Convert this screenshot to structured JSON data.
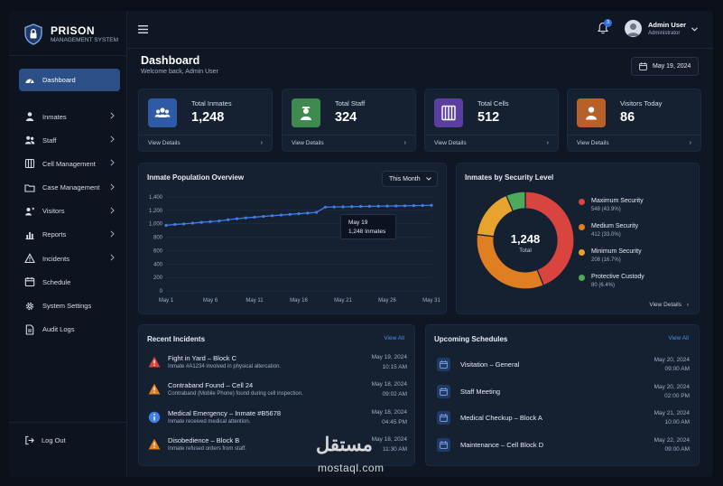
{
  "brand": {
    "title": "PRISON",
    "subtitle": "MANAGEMENT SYSTEM"
  },
  "sidebar": {
    "items": [
      {
        "label": "Dashboard",
        "icon": "dashboard-gauge-icon",
        "active": true,
        "chevron": false
      },
      {
        "label": "Inmates",
        "icon": "person-icon",
        "chevron": true
      },
      {
        "label": "Staff",
        "icon": "people-icon",
        "chevron": true
      },
      {
        "label": "Cell Management",
        "icon": "grid-cell-icon",
        "chevron": true
      },
      {
        "label": "Case Management",
        "icon": "folder-icon",
        "chevron": true
      },
      {
        "label": "Visitors",
        "icon": "visitors-icon",
        "chevron": true
      },
      {
        "label": "Reports",
        "icon": "bar-chart-icon",
        "chevron": true
      },
      {
        "label": "Incidents",
        "icon": "warning-icon",
        "chevron": true
      },
      {
        "label": "Schedule",
        "icon": "calendar-icon",
        "chevron": false
      },
      {
        "label": "System Settings",
        "icon": "gear-icon",
        "chevron": false
      },
      {
        "label": "Audit Logs",
        "icon": "document-icon",
        "chevron": false
      }
    ],
    "logout": "Log Out"
  },
  "topbar": {
    "notification_count": "3",
    "user_name": "Admin User",
    "user_role": "Administrator"
  },
  "header": {
    "title": "Dashboard",
    "subtitle": "Welcome back, Admin User",
    "date": "May 19, 2024"
  },
  "stats": [
    {
      "label": "Total Inmates",
      "value": "1,248",
      "link": "View Details",
      "color": "#2f5aa6",
      "icon": "inmates-group-icon"
    },
    {
      "label": "Total Staff",
      "value": "324",
      "link": "View Details",
      "color": "#3f8a4f",
      "icon": "staff-officer-icon"
    },
    {
      "label": "Total Cells",
      "value": "512",
      "link": "View Details",
      "color": "#5a3fa0",
      "icon": "cell-bars-icon"
    },
    {
      "label": "Visitors Today",
      "value": "86",
      "link": "View Details",
      "color": "#b8602a",
      "icon": "visitor-person-icon"
    }
  ],
  "population": {
    "title": "Inmate Population Overview",
    "filter": "This Month",
    "tooltip_date": "May 19",
    "tooltip_value": "1,248 Inmates"
  },
  "security": {
    "title": "Inmates by Security Level",
    "total": "1,248",
    "total_label": "Total",
    "link": "View Details",
    "legend": [
      {
        "label": "Maximum Security",
        "detail": "548 (43.9%)",
        "color": "#d9443f"
      },
      {
        "label": "Medium Security",
        "detail": "412 (33.0%)",
        "color": "#e07e22"
      },
      {
        "label": "Minimum Security",
        "detail": "208 (16.7%)",
        "color": "#e8a22e"
      },
      {
        "label": "Protective Custody",
        "detail": "80 (6.4%)",
        "color": "#4caa5a"
      }
    ]
  },
  "incidents": {
    "title": "Recent Incidents",
    "view_all": "View All",
    "rows": [
      {
        "title": "Fight in Yard – Block C",
        "desc": "Inmate #A1234 involved in physical altercation.",
        "date": "May 19, 2024",
        "time": "10:15 AM",
        "icon": "alert-red-icon"
      },
      {
        "title": "Contraband Found – Cell 24",
        "desc": "Contraband (Mobile Phone) found during cell inspection.",
        "date": "May 18, 2024",
        "time": "09:02 AM",
        "icon": "alert-orange-icon"
      },
      {
        "title": "Medical Emergency – Inmate #B5678",
        "desc": "Inmate received medical attention.",
        "date": "May 18, 2024",
        "time": "04:45 PM",
        "icon": "info-blue-icon"
      },
      {
        "title": "Disobedience – Block B",
        "desc": "Inmate refused orders from staff.",
        "date": "May 18, 2024",
        "time": "11:30 AM",
        "icon": "alert-orange-icon"
      }
    ]
  },
  "schedules": {
    "title": "Upcoming Schedules",
    "view_all": "View All",
    "rows": [
      {
        "title": "Visitation – General",
        "date": "May 20, 2024",
        "time": "09:00 AM"
      },
      {
        "title": "Staff Meeting",
        "date": "May 20, 2024",
        "time": "02:00 PM"
      },
      {
        "title": "Medical Checkup – Block A",
        "date": "May 21, 2024",
        "time": "10:00 AM"
      },
      {
        "title": "Maintenance – Cell Block D",
        "date": "May 22, 2024",
        "time": "09:00 AM"
      }
    ]
  },
  "watermark": {
    "text": "مستقل",
    "url": "mostaql.com"
  },
  "chart_data": [
    {
      "type": "line",
      "title": "Inmate Population Overview",
      "x": [
        "May 1",
        "May 2",
        "May 3",
        "May 4",
        "May 5",
        "May 6",
        "May 7",
        "May 8",
        "May 9",
        "May 10",
        "May 11",
        "May 12",
        "May 13",
        "May 14",
        "May 15",
        "May 16",
        "May 17",
        "May 18",
        "May 19",
        "May 20",
        "May 21",
        "May 22",
        "May 23",
        "May 24",
        "May 25",
        "May 26",
        "May 27",
        "May 28",
        "May 29",
        "May 30",
        "May 31"
      ],
      "x_ticks": [
        "May 1",
        "May 6",
        "May 11",
        "May 16",
        "May 21",
        "May 26",
        "May 31"
      ],
      "y_ticks": [
        "0",
        "200",
        "400",
        "600",
        "800",
        "1,000",
        "1,200",
        "1,400"
      ],
      "series": [
        {
          "values": [
            976,
            990,
            998,
            1010,
            1022,
            1032,
            1042,
            1060,
            1075,
            1088,
            1098,
            1110,
            1120,
            1130,
            1140,
            1150,
            1160,
            1170,
            1248,
            1250,
            1252,
            1255,
            1258,
            1260,
            1262,
            1264,
            1266,
            1268,
            1270,
            1272,
            1275
          ]
        }
      ],
      "ylim": [
        0,
        1400
      ],
      "color": "#3f7de8",
      "grid": true
    },
    {
      "type": "pie",
      "title": "Inmates by Security Level",
      "categories": [
        "Maximum Security",
        "Medium Security",
        "Minimum Security",
        "Protective Custody"
      ],
      "values": [
        548,
        412,
        208,
        80
      ],
      "colors": [
        "#d9443f",
        "#e07e22",
        "#e8a22e",
        "#4caa5a"
      ]
    }
  ]
}
